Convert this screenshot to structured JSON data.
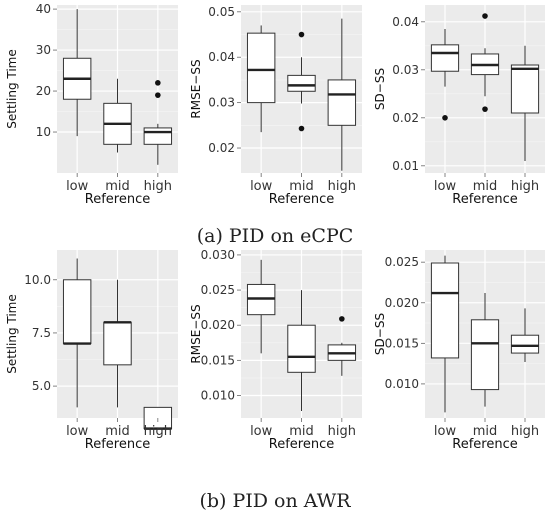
{
  "captions": [
    "(a) PID on eCPC",
    "(b) PID on AWR"
  ],
  "chart_data": [
    {
      "type": "box",
      "group": "a",
      "categories": [
        "low",
        "mid",
        "high"
      ],
      "xlabel": "Reference",
      "ylabel": "Settling Time",
      "ylim": [
        0,
        41
      ],
      "yticks": [
        10,
        20,
        30,
        40
      ],
      "yticklabels": [
        "10",
        "20",
        "30",
        "40"
      ],
      "boxes": [
        {
          "min": 9,
          "q1": 18,
          "median": 23,
          "q3": 28,
          "max": 40,
          "outliers": []
        },
        {
          "min": 5,
          "q1": 7,
          "median": 12,
          "q3": 17,
          "max": 23,
          "outliers": []
        },
        {
          "min": 2,
          "q1": 7,
          "median": 10,
          "q3": 11,
          "max": 12,
          "outliers": [
            19,
            22
          ]
        }
      ]
    },
    {
      "type": "box",
      "group": "a",
      "categories": [
        "low",
        "mid",
        "high"
      ],
      "xlabel": "Reference",
      "ylabel": "RMSE−SS",
      "ylim": [
        0.0145,
        0.0515
      ],
      "yticks": [
        0.02,
        0.03,
        0.04,
        0.05
      ],
      "yticklabels": [
        "0.02",
        "0.03",
        "0.04",
        "0.05"
      ],
      "boxes": [
        {
          "min": 0.0235,
          "q1": 0.03,
          "median": 0.0372,
          "q3": 0.0453,
          "max": 0.047,
          "outliers": []
        },
        {
          "min": 0.0298,
          "q1": 0.0325,
          "median": 0.0338,
          "q3": 0.036,
          "max": 0.04,
          "outliers": [
            0.045,
            0.0243
          ]
        },
        {
          "min": 0.015,
          "q1": 0.025,
          "median": 0.0318,
          "q3": 0.035,
          "max": 0.0485,
          "outliers": []
        }
      ]
    },
    {
      "type": "box",
      "group": "a",
      "categories": [
        "low",
        "mid",
        "high"
      ],
      "xlabel": "Reference",
      "ylabel": "SD−SS",
      "ylim": [
        0.0085,
        0.0435
      ],
      "yticks": [
        0.01,
        0.02,
        0.03,
        0.04
      ],
      "yticklabels": [
        "0.01",
        "0.02",
        "0.03",
        "0.04"
      ],
      "boxes": [
        {
          "min": 0.0265,
          "q1": 0.0297,
          "median": 0.0335,
          "q3": 0.0352,
          "max": 0.0385,
          "outliers": [
            0.02
          ]
        },
        {
          "min": 0.0245,
          "q1": 0.029,
          "median": 0.031,
          "q3": 0.0333,
          "max": 0.0345,
          "outliers": [
            0.0412,
            0.0218
          ]
        },
        {
          "min": 0.011,
          "q1": 0.021,
          "median": 0.0302,
          "q3": 0.031,
          "max": 0.035,
          "outliers": []
        }
      ]
    },
    {
      "type": "box",
      "group": "b",
      "categories": [
        "low",
        "mid",
        "high"
      ],
      "xlabel": "Reference",
      "ylabel": "Settling Time",
      "ylim": [
        3.5,
        11.4
      ],
      "yticks": [
        5.0,
        7.5,
        10.0
      ],
      "yticklabels": [
        "5.0",
        "7.5",
        "10.0"
      ],
      "boxes": [
        {
          "min": 4,
          "q1": 7,
          "median": 7,
          "q3": 10,
          "max": 11,
          "outliers": []
        },
        {
          "min": 4,
          "q1": 6,
          "median": 8,
          "q3": 8,
          "max": 10,
          "outliers": []
        },
        {
          "min": 3,
          "q1": 3,
          "median": 3,
          "q3": 4,
          "max": 4,
          "outliers": []
        }
      ]
    },
    {
      "type": "box",
      "group": "b",
      "categories": [
        "low",
        "mid",
        "high"
      ],
      "xlabel": "Reference",
      "ylabel": "RMSE−SS",
      "ylim": [
        0.0068,
        0.0307
      ],
      "yticks": [
        0.01,
        0.015,
        0.02,
        0.025,
        0.03
      ],
      "yticklabels": [
        "0.010",
        "0.015",
        "0.020",
        "0.025",
        "0.030"
      ],
      "boxes": [
        {
          "min": 0.016,
          "q1": 0.0215,
          "median": 0.0238,
          "q3": 0.0258,
          "max": 0.0293,
          "outliers": []
        },
        {
          "min": 0.0078,
          "q1": 0.0133,
          "median": 0.0155,
          "q3": 0.02,
          "max": 0.025,
          "outliers": []
        },
        {
          "min": 0.0128,
          "q1": 0.015,
          "median": 0.016,
          "q3": 0.0172,
          "max": 0.0175,
          "outliers": [
            0.0209
          ]
        }
      ]
    },
    {
      "type": "box",
      "group": "b",
      "categories": [
        "low",
        "mid",
        "high"
      ],
      "xlabel": "Reference",
      "ylabel": "SD−SS",
      "ylim": [
        0.0058,
        0.0265
      ],
      "yticks": [
        0.01,
        0.015,
        0.02,
        0.025
      ],
      "yticklabels": [
        "0.010",
        "0.015",
        "0.020",
        "0.025"
      ],
      "boxes": [
        {
          "min": 0.0065,
          "q1": 0.0132,
          "median": 0.0212,
          "q3": 0.0249,
          "max": 0.0258,
          "outliers": []
        },
        {
          "min": 0.0072,
          "q1": 0.0093,
          "median": 0.015,
          "q3": 0.0179,
          "max": 0.0212,
          "outliers": []
        },
        {
          "min": 0.0127,
          "q1": 0.0138,
          "median": 0.0147,
          "q3": 0.016,
          "max": 0.0193,
          "outliers": []
        }
      ]
    }
  ]
}
